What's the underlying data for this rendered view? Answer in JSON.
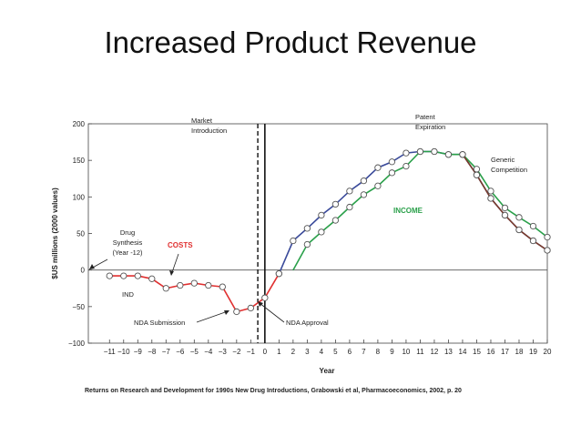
{
  "slide": {
    "title": "Increased Product Revenue"
  },
  "chart_data": {
    "type": "line",
    "title": "",
    "xlabel": "Year",
    "ylabel": "$US millions (2000 values)",
    "xlim": [
      -12.5,
      20
    ],
    "ylim": [
      -100,
      200
    ],
    "x_ticks": [
      -11,
      -10,
      -9,
      -8,
      -7,
      -6,
      -5,
      -4,
      -3,
      -2,
      -1,
      0,
      1,
      2,
      3,
      4,
      5,
      6,
      7,
      8,
      9,
      10,
      11,
      12,
      13,
      14,
      15,
      16,
      17,
      18,
      19,
      20
    ],
    "y_ticks": [
      200,
      150,
      100,
      50,
      0,
      -50,
      -100
    ],
    "grid": false,
    "series": [
      {
        "name": "COSTS",
        "color": "#e03030",
        "points": [
          [
            -11,
            -8
          ],
          [
            -10,
            -8
          ],
          [
            -9,
            -8
          ],
          [
            -8,
            -12
          ],
          [
            -7,
            -25
          ],
          [
            -6,
            -21
          ],
          [
            -5,
            -18
          ],
          [
            -4,
            -21
          ],
          [
            -3,
            -23
          ],
          [
            -2,
            -57
          ],
          [
            -1,
            -52
          ],
          [
            0,
            -38
          ],
          [
            1,
            -5
          ]
        ]
      },
      {
        "name": "",
        "color": "#3a4a9a",
        "points": [
          [
            1,
            -5
          ],
          [
            2,
            40
          ],
          [
            3,
            57
          ],
          [
            4,
            75
          ],
          [
            5,
            90
          ],
          [
            6,
            108
          ],
          [
            7,
            122
          ],
          [
            8,
            140
          ],
          [
            9,
            148
          ],
          [
            10,
            160
          ],
          [
            11,
            162
          ],
          [
            12,
            162
          ],
          [
            13,
            158
          ],
          [
            14,
            158
          ],
          [
            15,
            130
          ],
          [
            16,
            98
          ],
          [
            17,
            75
          ],
          [
            18,
            55
          ],
          [
            19,
            40
          ],
          [
            20,
            27
          ]
        ]
      },
      {
        "name": "INCOME",
        "color": "#2aa04a",
        "points": [
          [
            2,
            0
          ],
          [
            3,
            35
          ],
          [
            4,
            52
          ],
          [
            5,
            68
          ],
          [
            6,
            86
          ],
          [
            7,
            103
          ],
          [
            8,
            115
          ],
          [
            9,
            133
          ],
          [
            10,
            142
          ],
          [
            11,
            162
          ],
          [
            12,
            162
          ],
          [
            13,
            158
          ],
          [
            14,
            158
          ],
          [
            15,
            138
          ],
          [
            16,
            108
          ],
          [
            17,
            85
          ],
          [
            18,
            72
          ],
          [
            19,
            60
          ],
          [
            20,
            45
          ]
        ]
      },
      {
        "name": "",
        "color": "#7a3a2a",
        "points": [
          [
            14,
            158
          ],
          [
            15,
            130
          ],
          [
            16,
            98
          ],
          [
            17,
            75
          ],
          [
            18,
            55
          ],
          [
            19,
            40
          ],
          [
            20,
            27
          ]
        ]
      }
    ],
    "annotations": [
      {
        "id": "drug-synthesis",
        "lines": [
          "Drug",
          "Synthesis",
          "(Year -12)"
        ]
      },
      {
        "id": "costs",
        "lines": [
          "COSTS"
        ],
        "color": "#e03030"
      },
      {
        "id": "ind",
        "lines": [
          "IND"
        ]
      },
      {
        "id": "nda-submission",
        "lines": [
          "NDA Submission"
        ]
      },
      {
        "id": "market-intro",
        "lines": [
          "Market",
          "Introduction"
        ]
      },
      {
        "id": "nda-approval",
        "lines": [
          "NDA Approval"
        ]
      },
      {
        "id": "patent-exp",
        "lines": [
          "Patent",
          "Expiration"
        ]
      },
      {
        "id": "income",
        "lines": [
          "INCOME"
        ],
        "color": "#2aa04a"
      },
      {
        "id": "generic-comp",
        "lines": [
          "Generic",
          "Competition"
        ]
      }
    ],
    "footnote": "Returns on Research and Development for 1990s New Drug Introductions, Grabowski et al, Pharmacoeconomics, 2002, p. 20"
  }
}
